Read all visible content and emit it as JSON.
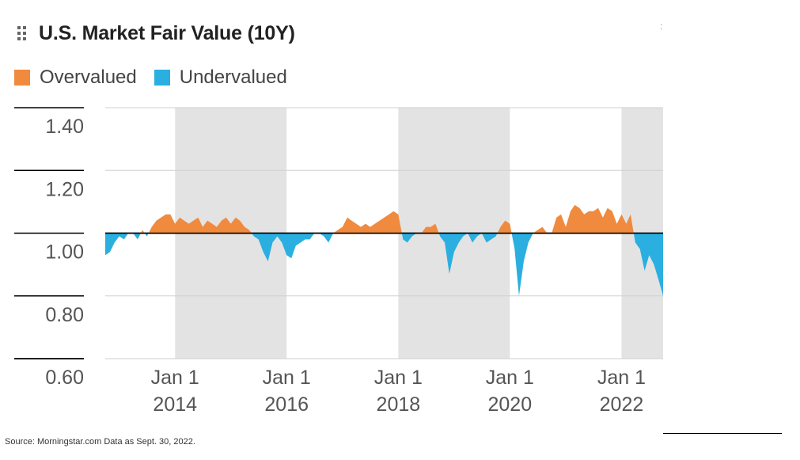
{
  "title": "U.S. Market Fair Value (10Y)",
  "legend": [
    {
      "label": "Overvalued",
      "color": "#F08A3E"
    },
    {
      "label": "Undervalued",
      "color": "#2AAFE0"
    }
  ],
  "source": "Source: Morningstar.com Data as Sept. 30, 2022.",
  "chart_data": {
    "type": "area",
    "title": "U.S. Market Fair Value (10Y)",
    "baseline": 1.0,
    "ylim": [
      0.6,
      1.4
    ],
    "xlim": [
      "2012-10-01",
      "2022-09-30"
    ],
    "y_ticks": [
      {
        "value": 1.4,
        "label": "1.40"
      },
      {
        "value": 1.2,
        "label": "1.20"
      },
      {
        "value": 1.0,
        "label": "1.00"
      },
      {
        "value": 0.8,
        "label": "0.80"
      },
      {
        "value": 0.6,
        "label": "0.60"
      }
    ],
    "x_ticks": [
      {
        "date": "2014-01-01",
        "line1": "Jan 1",
        "line2": "2014"
      },
      {
        "date": "2016-01-01",
        "line1": "Jan 1",
        "line2": "2016"
      },
      {
        "date": "2018-01-01",
        "line1": "Jan 1",
        "line2": "2018"
      },
      {
        "date": "2020-01-01",
        "line1": "Jan 1",
        "line2": "2020"
      },
      {
        "date": "2022-01-01",
        "line1": "Jan 1",
        "line2": "2022"
      }
    ],
    "shaded_periods": [
      [
        "2014-01-01",
        "2016-01-01"
      ],
      [
        "2018-01-01",
        "2020-01-01"
      ],
      [
        "2022-01-01",
        "2022-09-30"
      ]
    ],
    "colors": {
      "over": "#F08A3E",
      "under": "#2AAFE0",
      "shade": "#E3E3E3",
      "grid": "#CFCFCF",
      "axis": "#000000"
    },
    "series": [
      {
        "points": [
          [
            "2012-10-01",
            0.93
          ],
          [
            "2012-11-01",
            0.94
          ],
          [
            "2012-12-01",
            0.97
          ],
          [
            "2013-01-01",
            0.99
          ],
          [
            "2013-02-01",
            0.98
          ],
          [
            "2013-03-01",
            1.0
          ],
          [
            "2013-04-01",
            1.0
          ],
          [
            "2013-05-01",
            0.98
          ],
          [
            "2013-06-01",
            1.01
          ],
          [
            "2013-07-01",
            0.99
          ],
          [
            "2013-08-01",
            1.02
          ],
          [
            "2013-09-01",
            1.04
          ],
          [
            "2013-10-01",
            1.05
          ],
          [
            "2013-11-01",
            1.06
          ],
          [
            "2013-12-01",
            1.06
          ],
          [
            "2014-01-01",
            1.03
          ],
          [
            "2014-02-01",
            1.05
          ],
          [
            "2014-03-01",
            1.04
          ],
          [
            "2014-04-01",
            1.03
          ],
          [
            "2014-05-01",
            1.04
          ],
          [
            "2014-06-01",
            1.05
          ],
          [
            "2014-07-01",
            1.02
          ],
          [
            "2014-08-01",
            1.04
          ],
          [
            "2014-09-01",
            1.03
          ],
          [
            "2014-10-01",
            1.02
          ],
          [
            "2014-11-01",
            1.04
          ],
          [
            "2014-12-01",
            1.05
          ],
          [
            "2015-01-01",
            1.03
          ],
          [
            "2015-02-01",
            1.05
          ],
          [
            "2015-03-01",
            1.04
          ],
          [
            "2015-04-01",
            1.02
          ],
          [
            "2015-05-01",
            1.01
          ],
          [
            "2015-06-01",
            0.99
          ],
          [
            "2015-07-01",
            0.98
          ],
          [
            "2015-08-01",
            0.94
          ],
          [
            "2015-09-01",
            0.91
          ],
          [
            "2015-10-01",
            0.97
          ],
          [
            "2015-11-01",
            0.99
          ],
          [
            "2015-12-01",
            0.97
          ],
          [
            "2016-01-01",
            0.93
          ],
          [
            "2016-02-01",
            0.92
          ],
          [
            "2016-03-01",
            0.96
          ],
          [
            "2016-04-01",
            0.97
          ],
          [
            "2016-05-01",
            0.98
          ],
          [
            "2016-06-01",
            0.98
          ],
          [
            "2016-07-01",
            1.0
          ],
          [
            "2016-08-01",
            1.0
          ],
          [
            "2016-09-01",
            0.99
          ],
          [
            "2016-10-01",
            0.97
          ],
          [
            "2016-11-01",
            1.0
          ],
          [
            "2016-12-01",
            1.01
          ],
          [
            "2017-01-01",
            1.02
          ],
          [
            "2017-02-01",
            1.05
          ],
          [
            "2017-03-01",
            1.04
          ],
          [
            "2017-04-01",
            1.03
          ],
          [
            "2017-05-01",
            1.02
          ],
          [
            "2017-06-01",
            1.03
          ],
          [
            "2017-07-01",
            1.02
          ],
          [
            "2017-08-01",
            1.03
          ],
          [
            "2017-09-01",
            1.04
          ],
          [
            "2017-10-01",
            1.05
          ],
          [
            "2017-11-01",
            1.06
          ],
          [
            "2017-12-01",
            1.07
          ],
          [
            "2018-01-01",
            1.06
          ],
          [
            "2018-02-01",
            0.98
          ],
          [
            "2018-03-01",
            0.97
          ],
          [
            "2018-04-01",
            0.99
          ],
          [
            "2018-05-01",
            1.0
          ],
          [
            "2018-06-01",
            1.0
          ],
          [
            "2018-07-01",
            1.02
          ],
          [
            "2018-08-01",
            1.02
          ],
          [
            "2018-09-01",
            1.03
          ],
          [
            "2018-10-01",
            0.99
          ],
          [
            "2018-11-01",
            0.97
          ],
          [
            "2018-12-01",
            0.87
          ],
          [
            "2019-01-01",
            0.94
          ],
          [
            "2019-02-01",
            0.97
          ],
          [
            "2019-03-01",
            0.99
          ],
          [
            "2019-04-01",
            1.0
          ],
          [
            "2019-05-01",
            0.97
          ],
          [
            "2019-06-01",
            0.99
          ],
          [
            "2019-07-01",
            1.0
          ],
          [
            "2019-08-01",
            0.97
          ],
          [
            "2019-09-01",
            0.98
          ],
          [
            "2019-10-01",
            0.99
          ],
          [
            "2019-11-01",
            1.02
          ],
          [
            "2019-12-01",
            1.04
          ],
          [
            "2020-01-01",
            1.03
          ],
          [
            "2020-02-01",
            0.95
          ],
          [
            "2020-03-01",
            0.8
          ],
          [
            "2020-04-01",
            0.91
          ],
          [
            "2020-05-01",
            0.97
          ],
          [
            "2020-06-01",
            1.0
          ],
          [
            "2020-07-01",
            1.01
          ],
          [
            "2020-08-01",
            1.02
          ],
          [
            "2020-09-01",
            1.0
          ],
          [
            "2020-10-01",
            1.0
          ],
          [
            "2020-11-01",
            1.05
          ],
          [
            "2020-12-01",
            1.06
          ],
          [
            "2021-01-01",
            1.02
          ],
          [
            "2021-02-01",
            1.07
          ],
          [
            "2021-03-01",
            1.09
          ],
          [
            "2021-04-01",
            1.08
          ],
          [
            "2021-05-01",
            1.06
          ],
          [
            "2021-06-01",
            1.07
          ],
          [
            "2021-07-01",
            1.07
          ],
          [
            "2021-08-01",
            1.08
          ],
          [
            "2021-09-01",
            1.05
          ],
          [
            "2021-10-01",
            1.08
          ],
          [
            "2021-11-01",
            1.07
          ],
          [
            "2021-12-01",
            1.03
          ],
          [
            "2022-01-01",
            1.06
          ],
          [
            "2022-02-01",
            1.03
          ],
          [
            "2022-03-01",
            1.06
          ],
          [
            "2022-04-01",
            0.97
          ],
          [
            "2022-05-01",
            0.95
          ],
          [
            "2022-06-01",
            0.88
          ],
          [
            "2022-07-01",
            0.93
          ],
          [
            "2022-08-01",
            0.9
          ],
          [
            "2022-09-01",
            0.85
          ],
          [
            "2022-09-30",
            0.8
          ]
        ]
      }
    ]
  }
}
